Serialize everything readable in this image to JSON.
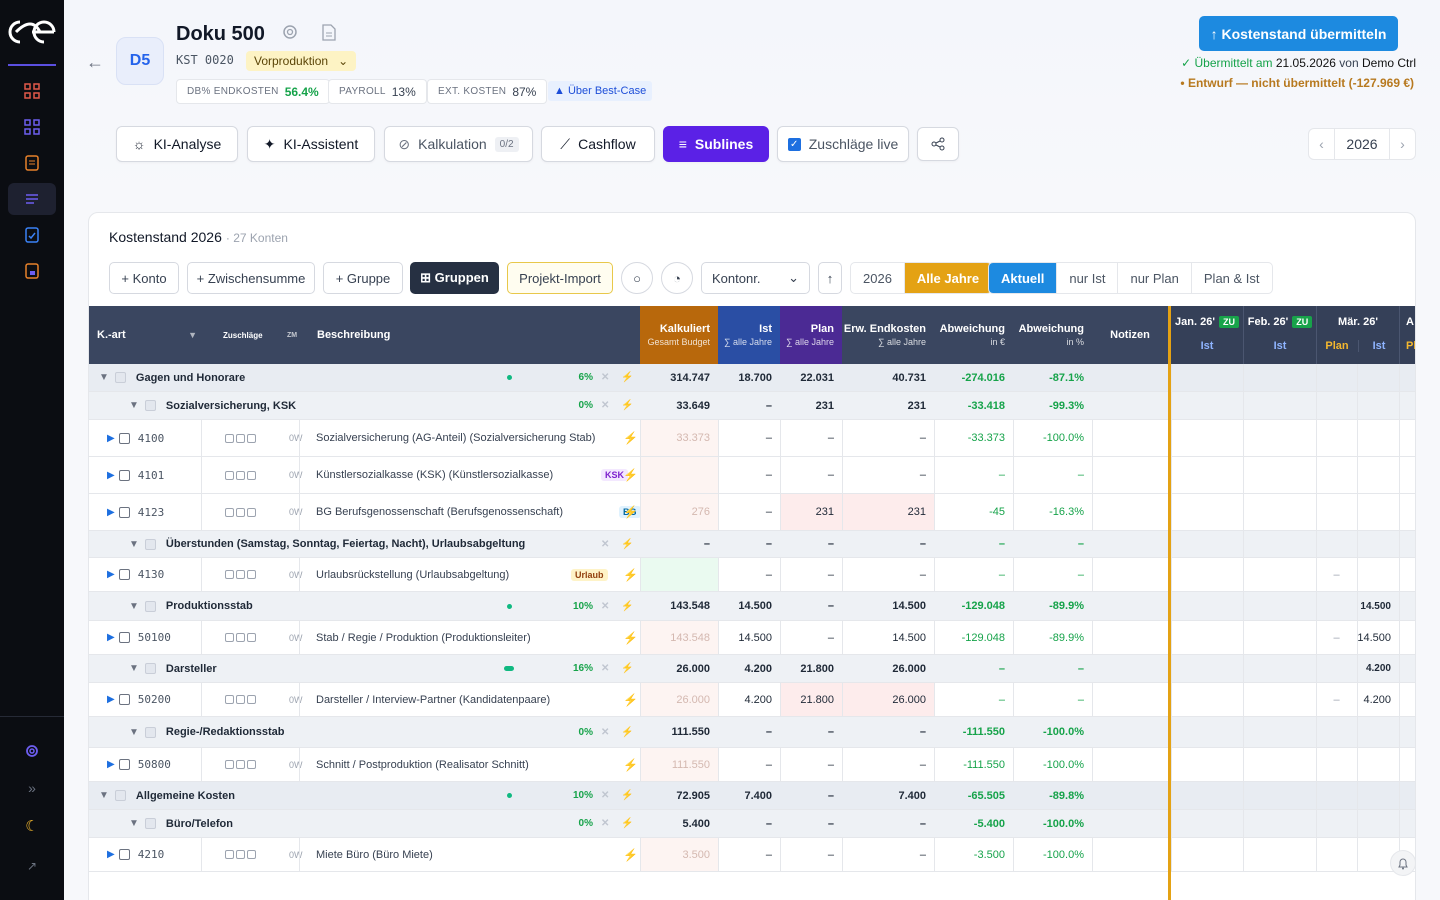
{
  "sidebar": {
    "logo": "ce-logo",
    "icons": [
      "grid-icon",
      "grid-icon",
      "ledger-icon",
      "list-icon",
      "check-doc-icon",
      "lock-doc-icon"
    ],
    "bottom_icons": [
      "gear-icon",
      "expand-icon",
      "moon-icon",
      "arrow-icon"
    ]
  },
  "header": {
    "back": "←",
    "avatar": "D5",
    "title": "Doku 500",
    "kst": "KST 0020",
    "phase": "Vorproduktion",
    "phase_arrow": "⌄",
    "chips": [
      {
        "label": "DB% ENDKOSTEN",
        "value": "56.4%"
      },
      {
        "label": "PAYROLL",
        "value": "13%"
      },
      {
        "label": "EXT. KOSTEN",
        "value": "87%"
      }
    ],
    "bestcase": "▲ Über Best-Case",
    "submit": "↑ Kostenstand übermitteln",
    "submitted_prefix": "✓ Übermittelt am",
    "submitted_date": "21.05.2026",
    "submitted_mid": "von",
    "submitted_by": "Demo Ctrl",
    "draft": "• Entwurf — nicht übermittelt (-127.969 €)"
  },
  "toolbar": {
    "ki_analyse": "KI-Analyse",
    "ki_assistent": "KI-Assistent",
    "kalkulation": "Kalkulation",
    "kalkulation_badge": "0/2",
    "cashflow": "Cashflow",
    "sublines": "Sublines",
    "zuschlaege": "Zuschläge live",
    "year": "2026",
    "prev": "‹",
    "next": "›"
  },
  "card": {
    "title": "Kostenstand 2026",
    "subtitle": "· 27 Konten",
    "buttons": {
      "konto": "+ Konto",
      "zwischensumme": "+ Zwischensumme",
      "gruppe": "+ Gruppe",
      "gruppen": "⊞ Gruppen",
      "projekt_import": "Projekt-Import"
    },
    "sort": "Kontonr.",
    "sort_dir": "↑",
    "years": [
      "2026",
      "Alle Jahre"
    ],
    "views": [
      "Aktuell",
      "nur Ist",
      "nur Plan",
      "Plan & Ist"
    ]
  },
  "columns": {
    "kart": "K.-art",
    "zuschlaege": "Zuschläge",
    "zm": "ZM",
    "beschreibung": "Beschreibung",
    "kalkuliert": "Kalkuliert",
    "kalkuliert_sub": "Gesamt Budget",
    "ist": "Ist",
    "ist_sub": "∑ alle Jahre",
    "plan": "Plan",
    "plan_sub": "∑ alle Jahre",
    "erw": "Erw. Endkosten",
    "erw_sub": "∑ alle Jahre",
    "abw_eur": "Abweichung",
    "abw_eur_sub": "in €",
    "abw_pct": "Abweichung",
    "abw_pct_sub": "in %",
    "notizen": "Notizen",
    "months": [
      {
        "name": "Jan. 26'",
        "zu": "ZU",
        "sub": "Ist"
      },
      {
        "name": "Feb. 26'",
        "zu": "ZU",
        "sub": "Ist"
      },
      {
        "name": "Mär. 26'",
        "sub1": "Plan",
        "sub2": "Ist"
      }
    ],
    "month4": "A",
    "month4_sub": "Pl"
  },
  "rows": [
    {
      "type": "grp",
      "label": "Gagen und Honorare",
      "pct": "6%",
      "kalk": "314.747",
      "ist": "18.700",
      "plan": "22.031",
      "erw": "40.731",
      "abw": "-274.016",
      "abwp": "-87.1%"
    },
    {
      "type": "sub",
      "label": "Sozialversicherung, KSK",
      "pct": "0%",
      "kalk": "33.649",
      "ist": "–",
      "plan": "231",
      "erw": "231",
      "abw": "-33.418",
      "abwp": "-99.3%"
    },
    {
      "type": "acc",
      "nr": "4100",
      "zm": "0W",
      "desc": "Sozialversicherung (AG-Anteil) (Sozialversicherung Stab)",
      "kalk": "33.373",
      "ist": "–",
      "plan": "–",
      "erw": "–",
      "abw": "-33.373",
      "abwp": "-100.0%"
    },
    {
      "type": "acc",
      "nr": "4101",
      "zm": "0W",
      "desc": "Künstlersozialkasse (KSK) (Künstlersozialkasse)",
      "tag": "KSK",
      "kalk": "",
      "ist": "–",
      "plan": "–",
      "erw": "–",
      "abw": "–",
      "abwp": "–"
    },
    {
      "type": "acc",
      "nr": "4123",
      "zm": "0W",
      "desc": "BG Berufsgenossenschaft (Berufsgenossenschaft)",
      "tag": "BG",
      "kalk": "276",
      "ist": "–",
      "plan": "231",
      "erw": "231",
      "abw": "-45",
      "abwp": "-16.3%"
    },
    {
      "type": "sub",
      "label": "Überstunden (Samstag, Sonntag, Feiertag, Nacht), Urlaubsabgeltung",
      "pct": "",
      "kalk": "–",
      "ist": "–",
      "plan": "–",
      "erw": "–",
      "abw": "–",
      "abwp": "–"
    },
    {
      "type": "acc",
      "nr": "4130",
      "zm": "0W",
      "desc": "Urlaubsrückstellung (Urlaubsabgeltung)",
      "tag": "Urlaub",
      "kalk": "",
      "ist": "–",
      "plan": "–",
      "erw": "–",
      "abw": "–",
      "abwp": "–",
      "m3": "–"
    },
    {
      "type": "sub",
      "label": "Produktionsstab",
      "pct": "10%",
      "kalk": "143.548",
      "ist": "14.500",
      "plan": "–",
      "erw": "14.500",
      "abw": "-129.048",
      "abwp": "-89.9%",
      "m3b": "14.500"
    },
    {
      "type": "acc",
      "nr": "50100",
      "zm": "0W",
      "desc": "Stab / Regie / Produktion (Produktionsleiter)",
      "kalk": "143.548",
      "ist": "14.500",
      "plan": "–",
      "erw": "14.500",
      "abw": "-129.048",
      "abwp": "-89.9%",
      "m3": "–",
      "m3b": "14.500"
    },
    {
      "type": "sub",
      "label": "Darsteller",
      "pct": "16%",
      "kalk": "26.000",
      "ist": "4.200",
      "plan": "21.800",
      "erw": "26.000",
      "abw": "–",
      "abwp": "–",
      "m3b": "4.200"
    },
    {
      "type": "acc",
      "nr": "50200",
      "zm": "0W",
      "desc": "Darsteller / Interview-Partner (Kandidatenpaare)",
      "kalk": "26.000",
      "ist": "4.200",
      "plan": "21.800",
      "erw": "26.000",
      "abw": "–",
      "abwp": "–",
      "m3": "–",
      "m3b": "4.200"
    },
    {
      "type": "sub",
      "label": "Regie-/Redaktionsstab",
      "pct": "0%",
      "kalk": "111.550",
      "ist": "–",
      "plan": "–",
      "erw": "–",
      "abw": "-111.550",
      "abwp": "-100.0%"
    },
    {
      "type": "acc",
      "nr": "50800",
      "zm": "0W",
      "desc": "Schnitt / Postproduktion (Realisator Schnitt)",
      "kalk": "111.550",
      "ist": "–",
      "plan": "–",
      "erw": "–",
      "abw": "-111.550",
      "abwp": "-100.0%"
    },
    {
      "type": "grp",
      "label": "Allgemeine Kosten",
      "pct": "10%",
      "kalk": "72.905",
      "ist": "7.400",
      "plan": "–",
      "erw": "7.400",
      "abw": "-65.505",
      "abwp": "-89.8%"
    },
    {
      "type": "sub",
      "label": "Büro/Telefon",
      "pct": "0%",
      "kalk": "5.400",
      "ist": "–",
      "plan": "–",
      "erw": "–",
      "abw": "-5.400",
      "abwp": "-100.0%"
    },
    {
      "type": "acc",
      "nr": "4210",
      "zm": "0W",
      "desc": "Miete Büro (Büro Miete)",
      "kalk": "3.500",
      "ist": "–",
      "plan": "–",
      "erw": "–",
      "abw": "-3.500",
      "abwp": "-100.0%"
    }
  ]
}
